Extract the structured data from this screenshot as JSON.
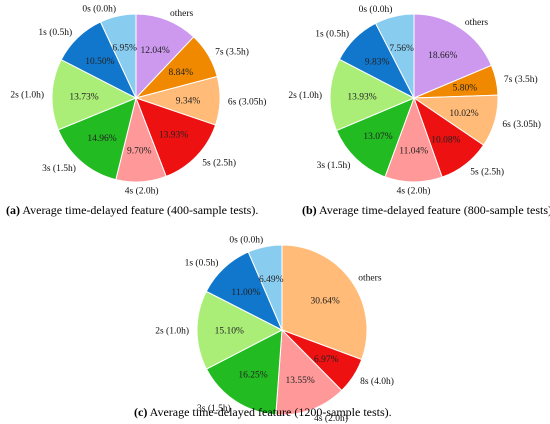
{
  "captions": {
    "a": {
      "letter": "(a)",
      "text": " Average time-delayed feature (400-sample tests)."
    },
    "b": {
      "letter": "(b)",
      "text": " Average time-delayed feature (800-sample tests)"
    },
    "c": {
      "letter": "(c)",
      "text": " Average time-delayed feature (1200-sample tests)."
    }
  },
  "chart_data": [
    {
      "type": "pie",
      "title": "",
      "start": "12 o'clock, clockwise",
      "slices": [
        {
          "label": "others",
          "value": 12.04,
          "value_label": "12.04%",
          "color": "#cc99ee"
        },
        {
          "label": "7s (3.5h)",
          "value": 8.84,
          "value_label": "8.84%",
          "color": "#f08800"
        },
        {
          "label": "6s (3.05h)",
          "value": 9.34,
          "value_label": "9.34%",
          "color": "#ffbb77"
        },
        {
          "label": "5s (2.5h)",
          "value": 13.93,
          "value_label": "13.93%",
          "color": "#ee1111"
        },
        {
          "label": "4s (2.0h)",
          "value": 9.7,
          "value_label": "9.70%",
          "color": "#ff9999"
        },
        {
          "label": "3s (1.5h)",
          "value": 14.96,
          "value_label": "14.96%",
          "color": "#22bb22"
        },
        {
          "label": "2s (1.0h)",
          "value": 13.73,
          "value_label": "13.73%",
          "color": "#aaee77"
        },
        {
          "label": "1s (0.5h)",
          "value": 10.5,
          "value_label": "10.50%",
          "color": "#1177cc"
        },
        {
          "label": "0s (0.0h)",
          "value": 6.95,
          "value_label": "6.95%",
          "color": "#88ccf0"
        }
      ]
    },
    {
      "type": "pie",
      "title": "",
      "start": "12 o'clock, clockwise",
      "slices": [
        {
          "label": "others",
          "value": 18.66,
          "value_label": "18.66%",
          "color": "#cc99ee"
        },
        {
          "label": "7s (3.5h)",
          "value": 5.8,
          "value_label": "5.80%",
          "color": "#f08800"
        },
        {
          "label": "6s (3.05h)",
          "value": 10.02,
          "value_label": "10.02%",
          "color": "#ffbb77"
        },
        {
          "label": "5s (2.5h)",
          "value": 10.08,
          "value_label": "10.08%",
          "color": "#ee1111"
        },
        {
          "label": "4s (2.0h)",
          "value": 11.04,
          "value_label": "11.04%",
          "color": "#ff9999"
        },
        {
          "label": "3s (1.5h)",
          "value": 13.07,
          "value_label": "13.07%",
          "color": "#22bb22"
        },
        {
          "label": "2s (1.0h)",
          "value": 13.93,
          "value_label": "13.93%",
          "color": "#aaee77"
        },
        {
          "label": "1s (0.5h)",
          "value": 9.83,
          "value_label": "9.83%",
          "color": "#1177cc"
        },
        {
          "label": "0s (0.0h)",
          "value": 7.56,
          "value_label": "7.56%",
          "color": "#88ccf0"
        }
      ]
    },
    {
      "type": "pie",
      "title": "",
      "start": "12 o'clock, clockwise",
      "slices": [
        {
          "label": "others",
          "value": 30.64,
          "value_label": "30.64%",
          "color": "#ffbb77"
        },
        {
          "label": "8s (4.0h)",
          "value": 6.97,
          "value_label": "6.97%",
          "color": "#ee1111"
        },
        {
          "label": "4s (2.0h)",
          "value": 13.55,
          "value_label": "13.55%",
          "color": "#ff9999"
        },
        {
          "label": "3s (1.5h)",
          "value": 16.25,
          "value_label": "16.25%",
          "color": "#22bb22"
        },
        {
          "label": "2s (1.0h)",
          "value": 15.1,
          "value_label": "15.10%",
          "color": "#aaee77"
        },
        {
          "label": "1s (0.5h)",
          "value": 11.0,
          "value_label": "11.00%",
          "color": "#1177cc"
        },
        {
          "label": "0s (0.0h)",
          "value": 6.49,
          "value_label": "6.49%",
          "color": "#88ccf0"
        }
      ]
    }
  ]
}
